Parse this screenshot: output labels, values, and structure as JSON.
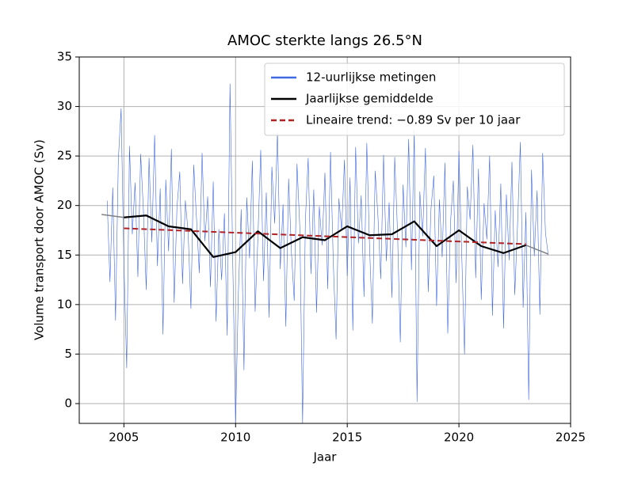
{
  "chart_data": {
    "type": "line",
    "title": "AMOC sterkte langs 26.5°N",
    "xlabel": "Jaar",
    "ylabel": "Volume transport door AMOC (Sv)",
    "xlim": [
      2003,
      2025
    ],
    "xticks": [
      2005,
      2010,
      2015,
      2020,
      2025
    ],
    "ylim": [
      -2,
      35
    ],
    "yticks": [
      0,
      5,
      10,
      15,
      20,
      25,
      30,
      35
    ],
    "grid": true,
    "legend": "upper right",
    "series": [
      {
        "name": "12-uurlijkse metingen",
        "color": "#4169e1",
        "width": 0.6,
        "x": [
          2004.25,
          2004.375,
          2004.5,
          2004.625,
          2004.75,
          2004.875,
          2005,
          2005.125,
          2005.25,
          2005.375,
          2005.5,
          2005.625,
          2005.75,
          2005.875,
          2006,
          2006.125,
          2006.25,
          2006.375,
          2006.5,
          2006.625,
          2006.75,
          2006.875,
          2007,
          2007.125,
          2007.25,
          2007.375,
          2007.5,
          2007.625,
          2007.75,
          2007.875,
          2008,
          2008.125,
          2008.25,
          2008.375,
          2008.5,
          2008.625,
          2008.75,
          2008.875,
          2009,
          2009.125,
          2009.25,
          2009.375,
          2009.5,
          2009.625,
          2009.75,
          2009.875,
          2010,
          2010.125,
          2010.25,
          2010.375,
          2010.5,
          2010.625,
          2010.75,
          2010.875,
          2011,
          2011.125,
          2011.25,
          2011.375,
          2011.5,
          2011.625,
          2011.75,
          2011.875,
          2012,
          2012.125,
          2012.25,
          2012.375,
          2012.5,
          2012.625,
          2012.75,
          2012.875,
          2013,
          2013.125,
          2013.25,
          2013.375,
          2013.5,
          2013.625,
          2013.75,
          2013.875,
          2014,
          2014.125,
          2014.25,
          2014.375,
          2014.5,
          2014.625,
          2014.75,
          2014.875,
          2015,
          2015.125,
          2015.25,
          2015.375,
          2015.5,
          2015.625,
          2015.75,
          2015.875,
          2016,
          2016.125,
          2016.25,
          2016.375,
          2016.5,
          2016.625,
          2016.75,
          2016.875,
          2017,
          2017.125,
          2017.25,
          2017.375,
          2017.5,
          2017.625,
          2017.75,
          2017.875,
          2018,
          2018.125,
          2018.25,
          2018.375,
          2018.5,
          2018.625,
          2018.75,
          2018.875,
          2019,
          2019.125,
          2019.25,
          2019.375,
          2019.5,
          2019.625,
          2019.75,
          2019.875,
          2020,
          2020.125,
          2020.25,
          2020.375,
          2020.5,
          2020.625,
          2020.75,
          2020.875,
          2021,
          2021.125,
          2021.25,
          2021.375,
          2021.5,
          2021.625,
          2021.75,
          2021.875,
          2022,
          2022.125,
          2022.25,
          2022.375,
          2022.5,
          2022.625,
          2022.75,
          2022.875,
          2023,
          2023.125,
          2023.25,
          2023.375,
          2023.5,
          2023.625,
          2023.75,
          2023.875,
          2024
        ],
        "values": [
          20.5,
          12.3,
          21.8,
          8.4,
          24.6,
          29.8,
          14.2,
          3.6,
          26.0,
          17.1,
          22.3,
          12.8,
          25.2,
          19.4,
          11.5,
          24.8,
          16.3,
          27.1,
          13.9,
          21.7,
          7.0,
          22.6,
          15.4,
          25.7,
          10.2,
          19.8,
          23.4,
          12.1,
          20.5,
          17.3,
          9.6,
          24.1,
          18.7,
          13.2,
          25.3,
          16.4,
          20.9,
          11.8,
          22.4,
          8.3,
          17.6,
          12.5,
          19.2,
          6.9,
          32.3,
          14.1,
          -2.0,
          11.2,
          19.6,
          3.4,
          20.8,
          14.7,
          24.5,
          9.3,
          16.8,
          25.6,
          12.4,
          21.3,
          8.7,
          23.9,
          18.2,
          27.4,
          13.6,
          20.1,
          7.8,
          22.7,
          15.3,
          10.4,
          24.2,
          17.8,
          -2.0,
          18.5,
          24.8,
          13.1,
          21.6,
          9.2,
          19.9,
          16.0,
          23.3,
          11.6,
          25.4,
          14.2,
          6.5,
          20.7,
          17.5,
          24.6,
          12.9,
          22.8,
          7.4,
          25.9,
          16.2,
          21.0,
          10.8,
          26.3,
          15.7,
          8.1,
          23.5,
          18.9,
          12.6,
          25.1,
          14.4,
          20.3,
          10.7,
          24.9,
          17.4,
          6.2,
          22.1,
          15.8,
          26.7,
          13.5,
          27.6,
          0.2,
          21.4,
          16.9,
          25.8,
          11.3,
          19.7,
          23.0,
          9.9,
          20.6,
          14.8,
          24.3,
          7.1,
          18.4,
          22.5,
          12.2,
          25.5,
          15.1,
          5.0,
          21.9,
          18.6,
          26.1,
          12.7,
          23.7,
          10.5,
          20.2,
          16.6,
          25.0,
          8.9,
          19.5,
          13.8,
          22.2,
          7.6,
          21.1,
          14.5,
          24.4,
          11.0,
          18.1,
          26.4,
          9.7,
          19.3,
          0.4,
          23.6,
          14.9,
          21.5,
          9.0,
          25.3,
          17.2,
          15.0
        ]
      },
      {
        "color": "#808080",
        "width": 1.5,
        "x": [
          2004,
          2005
        ],
        "values": [
          19.1,
          18.8
        ]
      },
      {
        "color": "#808080",
        "width": 1.5,
        "x": [
          2023,
          2024
        ],
        "values": [
          16.0,
          15.1
        ]
      },
      {
        "name": "Jaarlijkse gemiddelde",
        "color": "#000000",
        "width": 2.2,
        "x": [
          2005,
          2006,
          2007,
          2008,
          2009,
          2010,
          2011,
          2012,
          2013,
          2014,
          2015,
          2016,
          2017,
          2018,
          2019,
          2020,
          2021,
          2022,
          2023
        ],
        "values": [
          18.8,
          19.0,
          17.9,
          17.6,
          14.8,
          15.3,
          17.4,
          15.7,
          16.8,
          16.5,
          17.9,
          17.0,
          17.1,
          18.4,
          15.9,
          17.5,
          15.9,
          15.2,
          16.0
        ]
      },
      {
        "name": "Lineaire trend: −0.89 Sv per 10 jaar",
        "color": "#b22222",
        "width": 2,
        "dashed": true,
        "x": [
          2005,
          2023
        ],
        "values": [
          17.7,
          16.1
        ]
      }
    ]
  }
}
